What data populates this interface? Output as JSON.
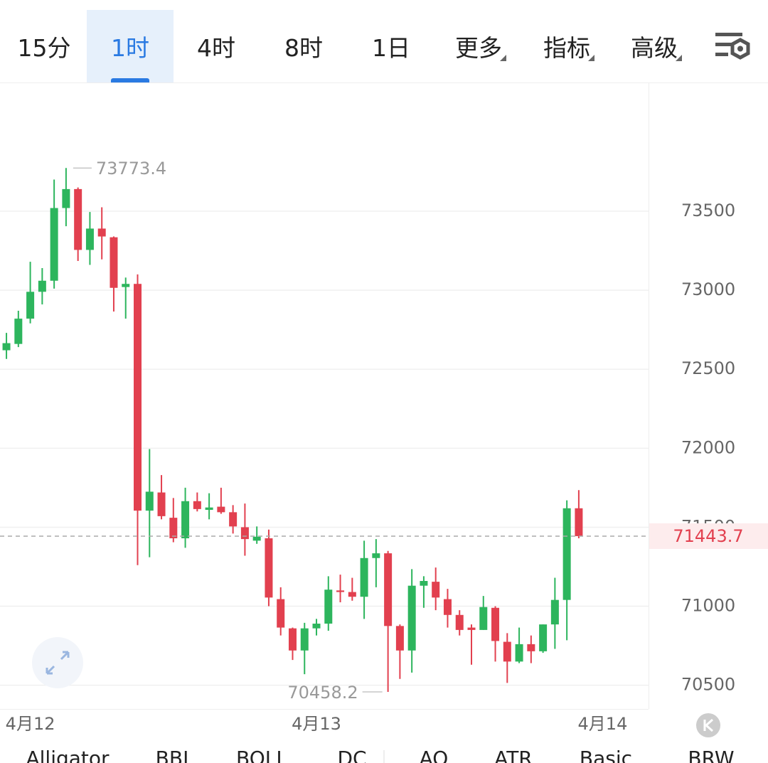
{
  "tabs": [
    "15分",
    "1时",
    "4时",
    "8时",
    "1日",
    "更多",
    "指标",
    "高级"
  ],
  "indicators": [
    "Alligator",
    "BBI",
    "BOLL",
    "DC",
    "AO",
    "ATR",
    "Basic",
    "BRW"
  ],
  "chart_data": {
    "type": "candlestick",
    "categories": [
      null,
      null,
      null,
      null,
      null,
      null,
      null,
      null,
      null,
      null,
      null,
      null,
      null,
      null,
      null,
      null,
      null,
      null,
      null,
      null,
      null,
      null,
      null,
      null,
      null,
      null,
      null,
      null,
      null,
      null,
      null,
      null,
      null,
      null,
      null,
      null,
      null,
      null,
      null,
      null,
      null,
      null,
      null,
      null,
      null,
      null,
      null,
      null,
      null
    ],
    "open": [
      72620,
      72660,
      72820,
      72990,
      73060,
      73520,
      73640,
      73255,
      73390,
      73335,
      73020,
      73040,
      71605,
      71720,
      71560,
      71430,
      71665,
      71610,
      71630,
      71595,
      71500,
      71415,
      71430,
      71045,
      70860,
      70720,
      70860,
      70890,
      71100,
      71090,
      71060,
      71305,
      71335,
      70875,
      70720,
      71130,
      71155,
      71045,
      70945,
      70865,
      70850,
      70990,
      70775,
      70650,
      70760,
      70715,
      70885,
      71040,
      71620
    ],
    "high": [
      72730,
      72870,
      73180,
      73140,
      73700,
      73773.4,
      73650,
      73495,
      73525,
      73340,
      73080,
      73100,
      71995,
      71830,
      71685,
      71750,
      71720,
      71715,
      71750,
      71640,
      71650,
      71505,
      71485,
      71120,
      70865,
      70895,
      70920,
      71190,
      71200,
      71180,
      71415,
      71425,
      71350,
      70885,
      71235,
      71190,
      71245,
      71110,
      70975,
      70885,
      71065,
      71000,
      70830,
      70865,
      70815,
      70885,
      71180,
      71670,
      71735
    ],
    "low": [
      72565,
      72640,
      72790,
      72910,
      73010,
      73405,
      73185,
      73160,
      73195,
      72865,
      72820,
      71260,
      71310,
      71550,
      71405,
      71370,
      71600,
      71550,
      71585,
      71460,
      71320,
      71395,
      71000,
      70815,
      70660,
      70570,
      70815,
      70845,
      71025,
      71035,
      70920,
      71120,
      70458.2,
      70540,
      70580,
      70990,
      70975,
      70865,
      70815,
      70630,
      70850,
      70650,
      70515,
      70640,
      70640,
      70705,
      70730,
      70785,
      71430
    ],
    "close": [
      72665,
      72820,
      72990,
      73060,
      73520,
      73640,
      73255,
      73390,
      73340,
      73015,
      73040,
      71605,
      71725,
      71570,
      71430,
      71665,
      71615,
      71625,
      71595,
      71505,
      71425,
      71440,
      71055,
      70865,
      70720,
      70860,
      70890,
      71105,
      71090,
      71060,
      71305,
      71335,
      70875,
      70720,
      71130,
      71160,
      71055,
      70945,
      70850,
      70850,
      70995,
      70780,
      70650,
      70760,
      70715,
      70885,
      71040,
      71620,
      71443.7
    ],
    "up_color": "#2db55d",
    "down_color": "#e2404f",
    "ylim": [
      70350,
      74310
    ],
    "yticks": [
      70500,
      71000,
      71500,
      72000,
      72500,
      73000,
      73500
    ],
    "xlim": [
      -0.54,
      53.85
    ],
    "xticks": [
      {
        "value": 2,
        "label": "4月12"
      },
      {
        "value": 26,
        "label": "4月13"
      },
      {
        "value": 50,
        "label": "4月14"
      }
    ],
    "grid": true
  }
}
